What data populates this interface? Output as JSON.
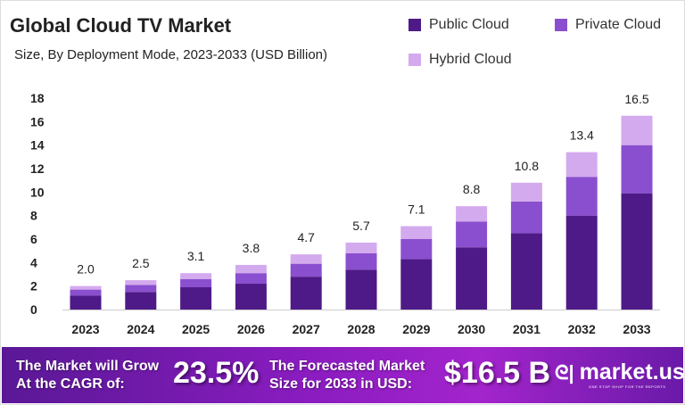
{
  "colors": {
    "public": "#4e1a87",
    "private": "#8a4fcf",
    "hybrid": "#d4aaee"
  },
  "chart_data": {
    "type": "bar",
    "stacked": true,
    "title": "Global Cloud TV Market",
    "subtitle": "Size, By Deployment Mode, 2023-2033 (USD Billion)",
    "xlabel": "",
    "ylabel": "",
    "ylim": [
      0,
      18
    ],
    "yticks": [
      "0",
      "2",
      "4",
      "6",
      "8",
      "10",
      "12",
      "14",
      "16",
      "18"
    ],
    "legend_position": "top-right",
    "categories": [
      "2023",
      "2024",
      "2025",
      "2026",
      "2027",
      "2028",
      "2029",
      "2030",
      "2031",
      "2032",
      "2033"
    ],
    "series": [
      {
        "name": "Public Cloud",
        "values": [
          1.2,
          1.5,
          1.9,
          2.2,
          2.8,
          3.4,
          4.3,
          5.3,
          6.5,
          8.0,
          9.9
        ]
      },
      {
        "name": "Private Cloud",
        "values": [
          0.5,
          0.6,
          0.7,
          0.9,
          1.1,
          1.4,
          1.7,
          2.2,
          2.7,
          3.3,
          4.1
        ]
      },
      {
        "name": "Hybrid Cloud",
        "values": [
          0.3,
          0.4,
          0.5,
          0.7,
          0.8,
          0.9,
          1.1,
          1.3,
          1.6,
          2.1,
          2.5
        ]
      }
    ],
    "totals": [
      "2.0",
      "2.5",
      "3.1",
      "3.8",
      "4.7",
      "5.7",
      "7.1",
      "8.8",
      "10.8",
      "13.4",
      "16.5"
    ]
  },
  "banner": {
    "cagr_label": "The Market will Grow At the CAGR of:",
    "cagr_value": "23.5%",
    "forecast_label": "The Forecasted Market Size for 2033 in USD:",
    "forecast_value": "$16.5 B",
    "logo_name": "market.us",
    "logo_tagline": "ONE STOP SHOP FOR THE REPORTS"
  }
}
